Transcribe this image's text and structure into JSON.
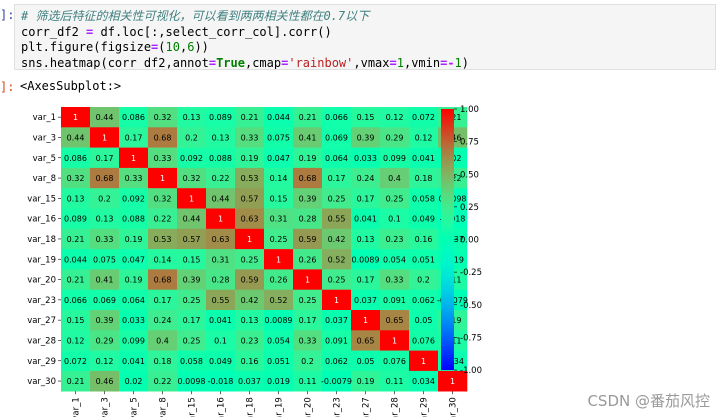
{
  "notebook": {
    "in_prompt": "]:",
    "out_prompt": "]:",
    "code_lines": [
      [
        {
          "t": "# 筛选后特征的相关性可视化，可以看到两两相关性都在0.7以下",
          "c": "c-comment"
        }
      ],
      [
        {
          "t": "corr_df2 ",
          "c": ""
        },
        {
          "t": "=",
          "c": "c-op"
        },
        {
          "t": " df.loc[:,select_corr_col].corr()",
          "c": ""
        }
      ],
      [
        {
          "t": "plt.figure(figsize",
          "c": ""
        },
        {
          "t": "=",
          "c": "c-op"
        },
        {
          "t": "(",
          "c": ""
        },
        {
          "t": "10",
          "c": "c-num"
        },
        {
          "t": ",",
          "c": ""
        },
        {
          "t": "6",
          "c": "c-num"
        },
        {
          "t": "))",
          "c": ""
        }
      ],
      [
        {
          "t": "sns.heatmap(corr_df2,annot",
          "c": ""
        },
        {
          "t": "=",
          "c": "c-op"
        },
        {
          "t": "True",
          "c": "c-kw"
        },
        {
          "t": ",cmap",
          "c": ""
        },
        {
          "t": "=",
          "c": "c-op"
        },
        {
          "t": "'rainbow'",
          "c": "c-str"
        },
        {
          "t": ",vmax",
          "c": ""
        },
        {
          "t": "=",
          "c": "c-op"
        },
        {
          "t": "1",
          "c": "c-num"
        },
        {
          "t": ",vmin",
          "c": ""
        },
        {
          "t": "=-",
          "c": "c-op"
        },
        {
          "t": "1",
          "c": "c-num"
        },
        {
          "t": ")",
          "c": ""
        }
      ]
    ],
    "output_repr": "<AxesSubplot:>",
    "watermark": "CSDN @番茄风控"
  },
  "chart_data": {
    "type": "heatmap",
    "cmap": "rainbow",
    "vmin": -1,
    "vmax": 1,
    "colorbar_ticks": [
      "1.00",
      "0.75",
      "0.50",
      "0.25",
      "0.00",
      "-0.25",
      "-0.50",
      "-0.75",
      "-1.00"
    ],
    "colorbar_tick_values": [
      1,
      0.75,
      0.5,
      0.25,
      0,
      -0.25,
      -0.5,
      -0.75,
      -1
    ],
    "labels": [
      "var_1",
      "var_3",
      "var_5",
      "var_8",
      "var_15",
      "var_16",
      "var_18",
      "var_19",
      "var_20",
      "var_23",
      "var_27",
      "var_28",
      "var_29",
      "var_30"
    ],
    "matrix": [
      [
        "1",
        "0.44",
        "0.086",
        "0.32",
        "0.13",
        "0.089",
        "0.21",
        "0.044",
        "0.21",
        "0.066",
        "0.15",
        "0.12",
        "0.072",
        "0.21"
      ],
      [
        "0.44",
        "1",
        "0.17",
        "0.68",
        "0.2",
        "0.13",
        "0.33",
        "0.075",
        "0.41",
        "0.069",
        "0.39",
        "0.29",
        "0.12",
        "0.46"
      ],
      [
        "0.086",
        "0.17",
        "1",
        "0.33",
        "0.092",
        "0.088",
        "0.19",
        "0.047",
        "0.19",
        "0.064",
        "0.033",
        "0.099",
        "0.041",
        "0.02"
      ],
      [
        "0.32",
        "0.68",
        "0.33",
        "1",
        "0.32",
        "0.22",
        "0.53",
        "0.14",
        "0.68",
        "0.17",
        "0.24",
        "0.4",
        "0.18",
        "0.22"
      ],
      [
        "0.13",
        "0.2",
        "0.092",
        "0.32",
        "1",
        "0.44",
        "0.57",
        "0.15",
        "0.39",
        "0.25",
        "0.17",
        "0.25",
        "0.058",
        "0.0098"
      ],
      [
        "0.089",
        "0.13",
        "0.088",
        "0.22",
        "0.44",
        "1",
        "0.63",
        "0.31",
        "0.28",
        "0.55",
        "0.041",
        "0.1",
        "0.049",
        "-0.018"
      ],
      [
        "0.21",
        "0.33",
        "0.19",
        "0.53",
        "0.57",
        "0.63",
        "1",
        "0.25",
        "0.59",
        "0.42",
        "0.13",
        "0.23",
        "0.16",
        "0.037"
      ],
      [
        "0.044",
        "0.075",
        "0.047",
        "0.14",
        "0.15",
        "0.31",
        "0.25",
        "1",
        "0.26",
        "0.52",
        "0.0089",
        "0.054",
        "0.051",
        "0.019"
      ],
      [
        "0.21",
        "0.41",
        "0.19",
        "0.68",
        "0.39",
        "0.28",
        "0.59",
        "0.26",
        "1",
        "0.25",
        "0.17",
        "0.33",
        "0.2",
        "0.11"
      ],
      [
        "0.066",
        "0.069",
        "0.064",
        "0.17",
        "0.25",
        "0.55",
        "0.42",
        "0.52",
        "0.25",
        "1",
        "0.037",
        "0.091",
        "0.062",
        "-0.0079"
      ],
      [
        "0.15",
        "0.39",
        "0.033",
        "0.24",
        "0.17",
        "0.041",
        "0.13",
        "0.0089",
        "0.17",
        "0.037",
        "1",
        "0.65",
        "0.05",
        "0.19"
      ],
      [
        "0.12",
        "0.29",
        "0.099",
        "0.4",
        "0.25",
        "0.1",
        "0.23",
        "0.054",
        "0.33",
        "0.091",
        "0.65",
        "1",
        "0.076",
        "0.11"
      ],
      [
        "0.072",
        "0.12",
        "0.041",
        "0.18",
        "0.058",
        "0.049",
        "0.16",
        "0.051",
        "0.2",
        "0.062",
        "0.05",
        "0.076",
        "1",
        "0.034"
      ],
      [
        "0.21",
        "0.46",
        "0.02",
        "0.22",
        "0.0098",
        "-0.018",
        "0.037",
        "0.019",
        "0.11",
        "-0.0079",
        "0.19",
        "0.11",
        "0.034",
        "1"
      ]
    ]
  }
}
